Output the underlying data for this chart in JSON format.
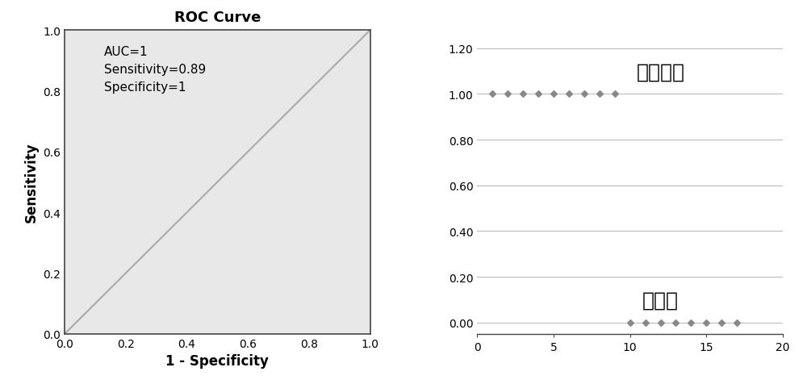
{
  "roc_title": "ROC Curve",
  "roc_xlabel": "1 - Specificity",
  "roc_ylabel": "Sensitivity",
  "roc_annotation": "AUC=1\nSensitivity=0.89\nSpecificity=1",
  "roc_xlim": [
    0.0,
    1.0
  ],
  "roc_ylim": [
    0.0,
    1.0
  ],
  "roc_xticks": [
    0.0,
    0.2,
    0.4,
    0.6,
    0.8,
    1.0
  ],
  "roc_yticks": [
    0.0,
    0.2,
    0.4,
    0.6,
    0.8,
    1.0
  ],
  "roc_line_color": "#aaaaaa",
  "roc_bg_color": "#e8e8e8",
  "scatter_diabetes_x": [
    1,
    2,
    3,
    4,
    5,
    6,
    7,
    8,
    9
  ],
  "scatter_diabetes_y": [
    1.0,
    1.0,
    1.0,
    1.0,
    1.0,
    1.0,
    1.0,
    1.0,
    1.0
  ],
  "scatter_normal_x": [
    10,
    11,
    12,
    13,
    14,
    15,
    16,
    17
  ],
  "scatter_normal_y": [
    0.0,
    0.0,
    0.0,
    0.0,
    0.0,
    0.0,
    0.0,
    0.0
  ],
  "scatter_xlim": [
    0,
    20
  ],
  "scatter_ylim": [
    -0.05,
    1.28
  ],
  "scatter_xticks": [
    0,
    5,
    10,
    15,
    20
  ],
  "scatter_yticks": [
    0.0,
    0.2,
    0.4,
    0.6,
    0.8,
    1.0,
    1.2
  ],
  "scatter_marker_color": "#888888",
  "scatter_label_diabetes": "糖尿病组",
  "scatter_label_normal": "正常组",
  "scatter_grid_color": "#bbbbbb",
  "annotation_fontsize": 11,
  "title_fontsize": 13,
  "axis_label_fontsize": 12,
  "scatter_label_fontsize": 18
}
